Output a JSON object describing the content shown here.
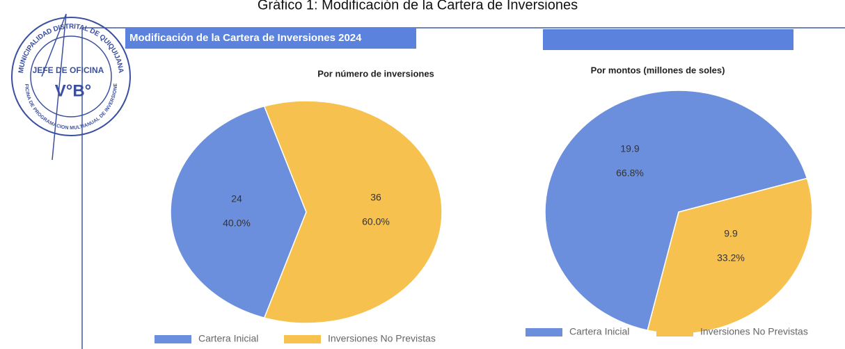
{
  "page_title": "Gráfico 1: Modificación de la Cartera de Inversiones",
  "banner": "Modificación de la Cartera de Inversiones 2024",
  "stamp": {
    "top": "MUNICIPALIDAD DISTRITAL DE QUIQUIJANA",
    "role": "JEFE DE OFICINA",
    "mark": "V°B°",
    "bottom": "OFICINA DE PROGRAMACION MULTIANUAL DE INVERSIONES"
  },
  "chart_data": [
    {
      "type": "pie",
      "title": "Por número de inversiones",
      "categories": [
        "Cartera Inicial",
        "Inversiones No Previstas"
      ],
      "values": [
        24,
        36
      ],
      "percent_labels": [
        "40.0%",
        "60.0%"
      ],
      "colors": [
        "#6b8fdc",
        "#f6c14e"
      ]
    },
    {
      "type": "pie",
      "title": "Por montos (millones de soles)",
      "categories": [
        "Cartera Inicial",
        "Inversiones No Previstas"
      ],
      "values": [
        19.9,
        9.9
      ],
      "percent_labels": [
        "66.8%",
        "33.2%"
      ],
      "colors": [
        "#6b8fdc",
        "#f6c14e"
      ]
    }
  ]
}
